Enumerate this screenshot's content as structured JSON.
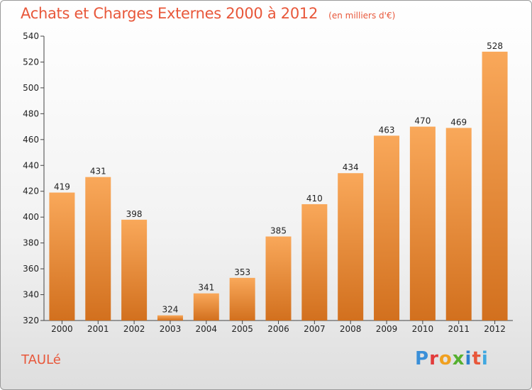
{
  "chart_data": {
    "type": "bar",
    "title": "Achats et Charges Externes 2000 à 2012",
    "subtitle": "(en milliers d'€)",
    "categories": [
      "2000",
      "2001",
      "2002",
      "2003",
      "2004",
      "2005",
      "2006",
      "2007",
      "2008",
      "2009",
      "2010",
      "2011",
      "2012"
    ],
    "values": [
      419,
      431,
      398,
      324,
      341,
      353,
      385,
      410,
      434,
      463,
      470,
      469,
      528
    ],
    "ylim": [
      320,
      540
    ],
    "yticks": [
      320,
      340,
      360,
      380,
      400,
      420,
      440,
      460,
      480,
      500,
      520,
      540
    ],
    "grid": false,
    "bar_color_top": "#f9a85a",
    "bar_color_bottom": "#d2701e"
  },
  "place": "TAULé",
  "logo": {
    "letters": [
      "P",
      "r",
      "o",
      "x",
      "i",
      "t",
      "i"
    ]
  }
}
